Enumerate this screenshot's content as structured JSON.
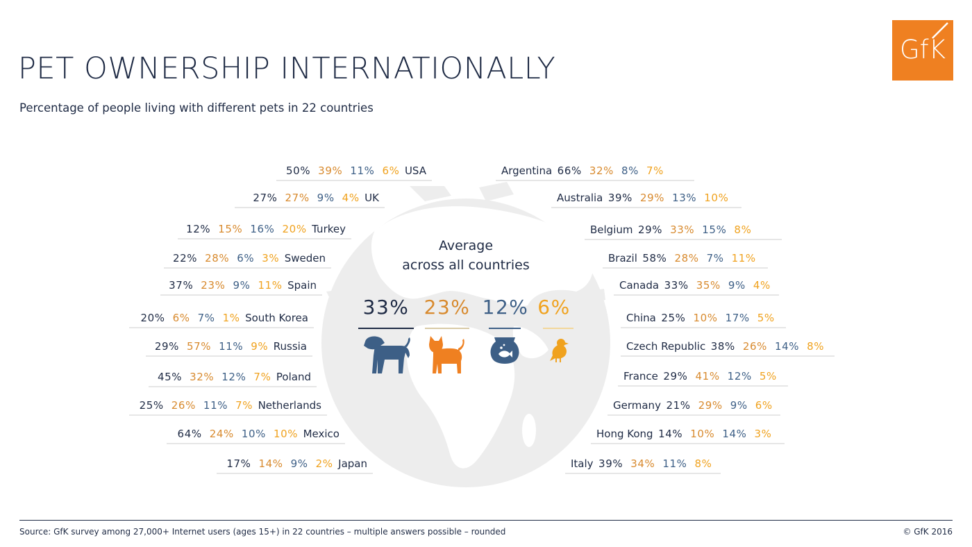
{
  "title": "PET OWNERSHIP INTERNATIONALLY",
  "subtitle": "Percentage of people living with different pets in 22 countries",
  "logo_text": "GfK",
  "colors": {
    "dogs": "#1e2a44",
    "cats": "#d88a2e",
    "fish": "#3d5f86",
    "birds": "#f0a21e",
    "logo": "#ef8021",
    "globe": "#ededed"
  },
  "average": {
    "heading_line1": "Average",
    "heading_line2": "across all countries",
    "values": [
      "33%",
      "23%",
      "12%",
      "6%"
    ],
    "icons": [
      "dog-icon",
      "cat-icon",
      "fishbowl-icon",
      "bird-icon"
    ]
  },
  "chart_data": {
    "type": "table",
    "columns": [
      "Dogs",
      "Cats",
      "Fish",
      "Birds"
    ],
    "average": [
      33,
      23,
      12,
      6
    ],
    "left": [
      {
        "country": "USA",
        "values": [
          50,
          39,
          11,
          6
        ]
      },
      {
        "country": "UK",
        "values": [
          27,
          27,
          9,
          4
        ]
      },
      {
        "country": "Turkey",
        "values": [
          12,
          15,
          16,
          20
        ]
      },
      {
        "country": "Sweden",
        "values": [
          22,
          28,
          6,
          3
        ]
      },
      {
        "country": "Spain",
        "values": [
          37,
          23,
          9,
          11
        ]
      },
      {
        "country": "South Korea",
        "values": [
          20,
          6,
          7,
          1
        ]
      },
      {
        "country": "Russia",
        "values": [
          29,
          57,
          11,
          9
        ]
      },
      {
        "country": "Poland",
        "values": [
          45,
          32,
          12,
          7
        ]
      },
      {
        "country": "Netherlands",
        "values": [
          25,
          26,
          11,
          7
        ]
      },
      {
        "country": "Mexico",
        "values": [
          64,
          24,
          10,
          10
        ]
      },
      {
        "country": "Japan",
        "values": [
          17,
          14,
          9,
          2
        ]
      }
    ],
    "right": [
      {
        "country": "Argentina",
        "values": [
          66,
          32,
          8,
          7
        ]
      },
      {
        "country": "Australia",
        "values": [
          39,
          29,
          13,
          10
        ]
      },
      {
        "country": "Belgium",
        "values": [
          29,
          33,
          15,
          8
        ]
      },
      {
        "country": "Brazil",
        "values": [
          58,
          28,
          7,
          11
        ]
      },
      {
        "country": "Canada",
        "values": [
          33,
          35,
          9,
          4
        ]
      },
      {
        "country": "China",
        "values": [
          25,
          10,
          17,
          5
        ]
      },
      {
        "country": "Czech Republic",
        "values": [
          38,
          26,
          14,
          8
        ]
      },
      {
        "country": "France",
        "values": [
          29,
          41,
          12,
          5
        ]
      },
      {
        "country": "Germany",
        "values": [
          21,
          29,
          9,
          6
        ]
      },
      {
        "country": "Hong Kong",
        "values": [
          14,
          10,
          14,
          3
        ]
      },
      {
        "country": "Italy",
        "values": [
          39,
          34,
          11,
          8
        ]
      }
    ]
  },
  "footer": {
    "source": "Source:  GfK survey among 27,000+ Internet users (ages 15+) in 22 countries – multiple answers possible – rounded",
    "copyright": "© GfK 2016"
  }
}
